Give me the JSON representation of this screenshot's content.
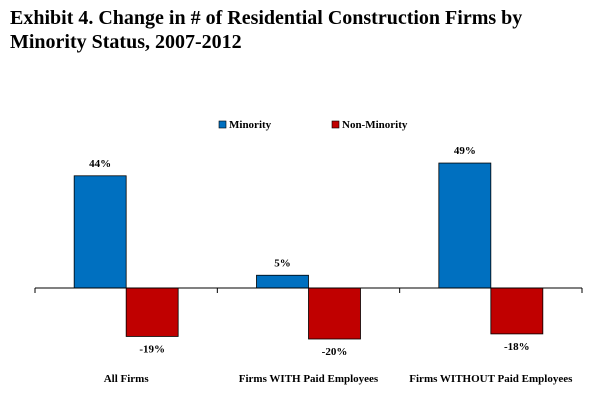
{
  "title": "Exhibit 4.  Change in # of Residential Construction Firms by Minority Status, 2007-2012",
  "chart_data": {
    "type": "bar",
    "title": "Exhibit 4.  Change in # of Residential Construction Firms by Minority Status, 2007-2012",
    "xlabel": "",
    "ylabel": "",
    "categories": [
      "All Firms",
      "Firms WITH Paid Employees",
      "Firms WITHOUT Paid Employees"
    ],
    "series": [
      {
        "name": "Minority",
        "color": "#0070C0",
        "values": [
          44,
          5,
          49
        ],
        "labels": [
          "44%",
          "5%",
          "49%"
        ]
      },
      {
        "name": "Non-Minority",
        "color": "#C00000",
        "values": [
          -19,
          -20,
          -18
        ],
        "labels": [
          "-19%",
          "-20%",
          "-18%"
        ]
      }
    ],
    "ylim": [
      -30,
      60
    ],
    "grid": false,
    "legend": "top"
  }
}
